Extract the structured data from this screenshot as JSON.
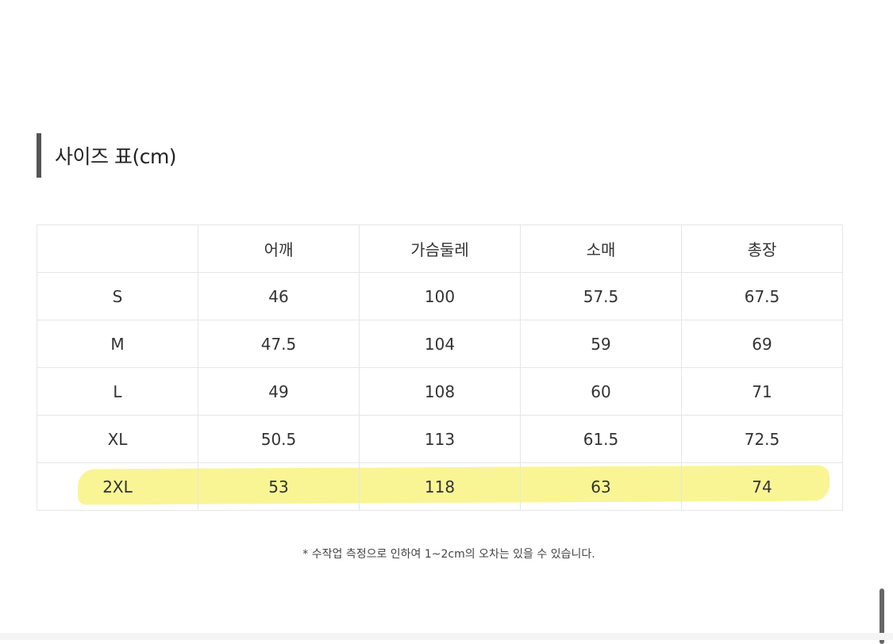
{
  "title": "사이즈 표(cm)",
  "table": {
    "headers": [
      "",
      "어깨",
      "가슴둘레",
      "소매",
      "총장"
    ],
    "rows": [
      [
        "S",
        "46",
        "100",
        "57.5",
        "67.5"
      ],
      [
        "M",
        "47.5",
        "104",
        "59",
        "69"
      ],
      [
        "L",
        "49",
        "108",
        "60",
        "71"
      ],
      [
        "XL",
        "50.5",
        "113",
        "61.5",
        "72.5"
      ],
      [
        "2XL",
        "53",
        "118",
        "63",
        "74"
      ]
    ],
    "highlighted_row": "2XL",
    "highlight_color": "#f7f27a"
  },
  "note": "* 수작업 측정으로 인하여 1~2cm의 오차는 있을 수 있습니다."
}
